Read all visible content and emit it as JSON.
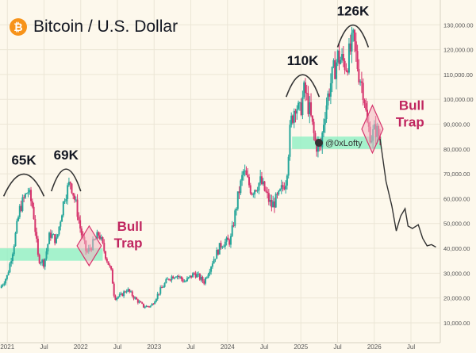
{
  "header": {
    "title": "Bitcoin / U.S. Dollar",
    "logo_symbol": "₿",
    "logo_color": "#f7931a"
  },
  "watermark": "@0xLofty",
  "colors": {
    "up": "#26a69a",
    "down": "#d6336c",
    "projection": "#333333",
    "support_zone": "#8ff0c4",
    "trap_fill": "#f4b6c2",
    "trap_stroke": "#d6336c",
    "annotation_text": "#131722",
    "bull_trap_text": "#c0255f",
    "background": "#fdf8ec"
  },
  "chart_data": {
    "type": "candlestick",
    "title": "Bitcoin / U.S. Dollar",
    "x_axis": {
      "ticks": [
        {
          "label": "2021",
          "t": 2021.0
        },
        {
          "label": "Jul",
          "t": 2021.5
        },
        {
          "label": "2022",
          "t": 2022.0
        },
        {
          "label": "Jul",
          "t": 2022.5
        },
        {
          "label": "2023",
          "t": 2023.0
        },
        {
          "label": "Jul",
          "t": 2023.5
        },
        {
          "label": "2024",
          "t": 2024.0
        },
        {
          "label": "Jul",
          "t": 2024.5
        },
        {
          "label": "2025",
          "t": 2025.0
        },
        {
          "label": "Jul",
          "t": 2025.5
        },
        {
          "label": "2026",
          "t": 2026.0
        },
        {
          "label": "Jul",
          "t": 2026.5
        }
      ],
      "range": [
        2020.9,
        2026.9
      ]
    },
    "y_axis": {
      "scale": "linear",
      "range": [
        2000,
        140000
      ],
      "ticks": [
        {
          "label": "10,000.00",
          "v": 10000
        },
        {
          "label": "20,000.00",
          "v": 20000
        },
        {
          "label": "30,000.00",
          "v": 30000
        },
        {
          "label": "40,000.00",
          "v": 40000
        },
        {
          "label": "50,000.00",
          "v": 50000
        },
        {
          "label": "60,000.00",
          "v": 60000
        },
        {
          "label": "70,000.00",
          "v": 70000
        },
        {
          "label": "80,000.00",
          "v": 80000
        },
        {
          "label": "90,000.00",
          "v": 90000
        },
        {
          "label": "100,000.00",
          "v": 100000
        },
        {
          "label": "110,000.00",
          "v": 110000
        },
        {
          "label": "120,000.00",
          "v": 120000
        },
        {
          "label": "130,000.00",
          "v": 130000
        }
      ]
    },
    "price_path": [
      [
        2020.9,
        24000
      ],
      [
        2021.0,
        29000
      ],
      [
        2021.08,
        40000
      ],
      [
        2021.17,
        56000
      ],
      [
        2021.28,
        63500
      ],
      [
        2021.35,
        56000
      ],
      [
        2021.42,
        36000
      ],
      [
        2021.5,
        34000
      ],
      [
        2021.58,
        46000
      ],
      [
        2021.67,
        43000
      ],
      [
        2021.78,
        61000
      ],
      [
        2021.86,
        67000
      ],
      [
        2021.94,
        57000
      ],
      [
        2022.0,
        47000
      ],
      [
        2022.08,
        38000
      ],
      [
        2022.17,
        42000
      ],
      [
        2022.25,
        46000
      ],
      [
        2022.33,
        38000
      ],
      [
        2022.42,
        30000
      ],
      [
        2022.46,
        20000
      ],
      [
        2022.55,
        21000
      ],
      [
        2022.63,
        23500
      ],
      [
        2022.75,
        19500
      ],
      [
        2022.86,
        16500
      ],
      [
        2022.96,
        16800
      ],
      [
        2023.08,
        23000
      ],
      [
        2023.2,
        28000
      ],
      [
        2023.3,
        29500
      ],
      [
        2023.42,
        26500
      ],
      [
        2023.55,
        30000
      ],
      [
        2023.68,
        26500
      ],
      [
        2023.8,
        35000
      ],
      [
        2023.92,
        42000
      ],
      [
        2024.04,
        43000
      ],
      [
        2024.15,
        62000
      ],
      [
        2024.22,
        71000
      ],
      [
        2024.33,
        63000
      ],
      [
        2024.45,
        67000
      ],
      [
        2024.6,
        57000
      ],
      [
        2024.7,
        61000
      ],
      [
        2024.8,
        68000
      ],
      [
        2024.86,
        90000
      ],
      [
        2024.93,
        99000
      ],
      [
        2024.98,
        94000
      ],
      [
        2025.05,
        104000
      ],
      [
        2025.12,
        95000
      ],
      [
        2025.2,
        82000
      ],
      [
        2025.27,
        80000
      ],
      [
        2025.32,
        94000
      ],
      [
        2025.4,
        106000
      ],
      [
        2025.5,
        117000
      ],
      [
        2025.62,
        114000
      ],
      [
        2025.72,
        124000
      ],
      [
        2025.78,
        112000
      ],
      [
        2025.86,
        103000
      ],
      [
        2025.9,
        90000
      ],
      [
        2025.96,
        85000
      ],
      [
        2026.02,
        88000
      ],
      [
        2026.08,
        84000
      ]
    ],
    "projection": [
      [
        2026.08,
        84000
      ],
      [
        2026.16,
        67000
      ],
      [
        2026.24,
        57000
      ],
      [
        2026.3,
        47000
      ],
      [
        2026.36,
        53000
      ],
      [
        2026.42,
        56000
      ],
      [
        2026.46,
        49000
      ],
      [
        2026.52,
        48000
      ],
      [
        2026.6,
        49500
      ],
      [
        2026.66,
        44000
      ],
      [
        2026.72,
        41000
      ],
      [
        2026.78,
        41500
      ],
      [
        2026.84,
        40500
      ]
    ],
    "arcs": [
      {
        "label": "65K",
        "t0": 2020.95,
        "t1": 2021.5,
        "v": 68000
      },
      {
        "label": "69K",
        "t0": 2021.6,
        "t1": 2022.0,
        "v": 70000
      },
      {
        "label": "110K",
        "t0": 2024.8,
        "t1": 2025.25,
        "v": 108000
      },
      {
        "label": "126K",
        "t0": 2025.5,
        "t1": 2025.92,
        "v": 128000
      }
    ],
    "support_zones": [
      {
        "t0": 2020.9,
        "t1": 2022.3,
        "v0": 35000,
        "v1": 40000
      },
      {
        "t0": 2024.88,
        "t1": 2026.1,
        "v0": 80000,
        "v1": 85000
      }
    ],
    "bull_traps": [
      {
        "label_line1": "Bull",
        "label_line2": "Trap",
        "t0": 2021.95,
        "t1": 2022.28,
        "v": 41000,
        "half_height": 5000
      },
      {
        "label_line1": "Bull",
        "label_line2": "Trap",
        "t0": 2025.83,
        "t1": 2026.12,
        "v": 88000,
        "half_height": 6000
      }
    ]
  }
}
